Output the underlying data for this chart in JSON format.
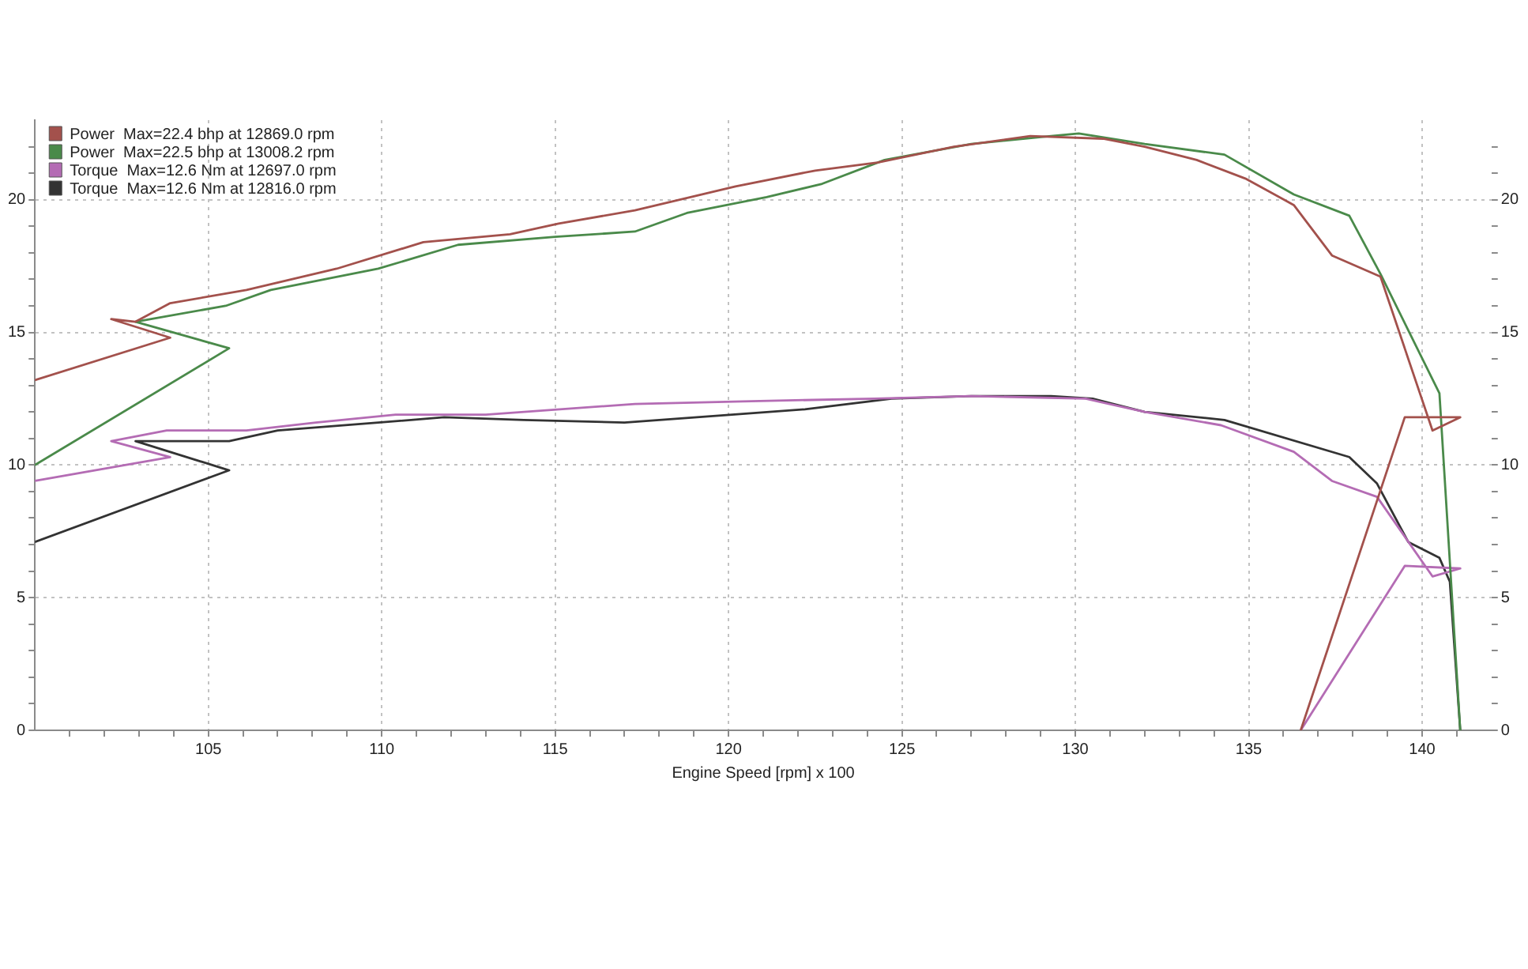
{
  "chart_data": {
    "type": "line",
    "xlabel": "Engine Speed [rpm] x 100",
    "xlim": [
      100,
      142
    ],
    "xticks": [
      {
        "value": 101,
        "label": null
      },
      {
        "value": 102,
        "label": null
      },
      {
        "value": 103,
        "label": null
      },
      {
        "value": 104,
        "label": null
      },
      105,
      {
        "value": 106,
        "label": null
      },
      {
        "value": 107,
        "label": null
      },
      {
        "value": 108,
        "label": null
      },
      {
        "value": 109,
        "label": null
      },
      110,
      {
        "value": 111,
        "label": null
      },
      {
        "value": 112,
        "label": null
      },
      {
        "value": 113,
        "label": null
      },
      {
        "value": 114,
        "label": null
      },
      115,
      {
        "value": 116,
        "label": null
      },
      {
        "value": 117,
        "label": null
      },
      {
        "value": 118,
        "label": null
      },
      {
        "value": 119,
        "label": null
      },
      120,
      {
        "value": 121,
        "label": null
      },
      {
        "value": 122,
        "label": null
      },
      {
        "value": 123,
        "label": null
      },
      {
        "value": 124,
        "label": null
      },
      125,
      {
        "value": 126,
        "label": null
      },
      {
        "value": 127,
        "label": null
      },
      {
        "value": 128,
        "label": null
      },
      {
        "value": 129,
        "label": null
      },
      130,
      {
        "value": 131,
        "label": null
      },
      {
        "value": 132,
        "label": null
      },
      {
        "value": 133,
        "label": null
      },
      {
        "value": 134,
        "label": null
      },
      135,
      {
        "value": 136,
        "label": null
      },
      {
        "value": 137,
        "label": null
      },
      {
        "value": 138,
        "label": null
      },
      {
        "value": 139,
        "label": null
      },
      140,
      {
        "value": 141,
        "label": null
      }
    ],
    "ylim": [
      0,
      23
    ],
    "yticks": [
      0,
      {
        "value": 1,
        "label": null
      },
      {
        "value": 2,
        "label": null
      },
      {
        "value": 3,
        "label": null
      },
      {
        "value": 4,
        "label": null
      },
      5,
      {
        "value": 6,
        "label": null
      },
      {
        "value": 7,
        "label": null
      },
      {
        "value": 8,
        "label": null
      },
      {
        "value": 9,
        "label": null
      },
      10,
      {
        "value": 11,
        "label": null
      },
      {
        "value": 12,
        "label": null
      },
      {
        "value": 13,
        "label": null
      },
      {
        "value": 14,
        "label": null
      },
      15,
      {
        "value": 16,
        "label": null
      },
      {
        "value": 17,
        "label": null
      },
      {
        "value": 18,
        "label": null
      },
      {
        "value": 19,
        "label": null
      },
      20,
      {
        "value": 21,
        "label": null
      },
      {
        "value": 22,
        "label": null
      }
    ],
    "y2lim": [
      0,
      23
    ],
    "y2ticks": [
      0,
      {
        "value": 1,
        "label": null
      },
      {
        "value": 2,
        "label": null
      },
      {
        "value": 3,
        "label": null
      },
      {
        "value": 4,
        "label": null
      },
      5,
      {
        "value": 6,
        "label": null
      },
      {
        "value": 7,
        "label": null
      },
      {
        "value": 8,
        "label": null
      },
      {
        "value": 9,
        "label": null
      },
      10,
      {
        "value": 11,
        "label": null
      },
      {
        "value": 12,
        "label": null
      },
      {
        "value": 13,
        "label": null
      },
      {
        "value": 14,
        "label": null
      },
      15,
      {
        "value": 16,
        "label": null
      },
      {
        "value": 17,
        "label": null
      },
      {
        "value": 18,
        "label": null
      },
      {
        "value": 19,
        "label": null
      },
      20,
      {
        "value": 21,
        "label": null
      },
      {
        "value": 22,
        "label": null
      }
    ],
    "grid": true,
    "legend": "top left",
    "marker": "none",
    "line_style": "solid",
    "series": [
      {
        "name": "Power  Max=22.4 bhp at 12869.0 rpm",
        "color": "#a3514c",
        "x": [
          100,
          103.9,
          102.2,
          102.9,
          103.9,
          106.1,
          108.7,
          111.2,
          113.7,
          115.1,
          117.3,
          120.2,
          122.5,
          124.3,
          126.5,
          128.7,
          130.8,
          132.0,
          133.5,
          134.9,
          136.3,
          137.4,
          138.8,
          140.3,
          141.1,
          139.5,
          136.5
        ],
        "values": [
          13.2,
          14.8,
          15.5,
          15.4,
          16.1,
          16.6,
          17.4,
          18.4,
          18.7,
          19.1,
          19.6,
          20.5,
          21.1,
          21.4,
          22.0,
          22.4,
          22.3,
          22.0,
          21.5,
          20.8,
          19.8,
          17.9,
          17.1,
          11.3,
          11.8,
          11.8,
          0
        ]
      },
      {
        "name": "Power  Max=22.5 bhp at 13008.2 rpm",
        "color": "#4a8a4a",
        "x": [
          100,
          105.6,
          102.9,
          105.5,
          106.8,
          109.9,
          112.2,
          115.0,
          117.3,
          118.8,
          121.1,
          122.7,
          124.5,
          127.0,
          129.3,
          130.1,
          132.0,
          134.3,
          136.3,
          137.9,
          138.8,
          140.5,
          141.1
        ],
        "values": [
          10.0,
          14.4,
          15.4,
          16.0,
          16.6,
          17.4,
          18.3,
          18.6,
          18.8,
          19.5,
          20.1,
          20.6,
          21.5,
          22.1,
          22.4,
          22.5,
          22.1,
          21.7,
          20.2,
          19.4,
          17.2,
          12.7,
          0
        ]
      },
      {
        "name": "Torque  Max=12.6 Nm at 12697.0 rpm",
        "color": "#b46cb4",
        "x": [
          100,
          103.9,
          102.2,
          103.8,
          106.1,
          108.1,
          110.4,
          113.0,
          117.3,
          120.4,
          124.2,
          127.0,
          130.3,
          132.0,
          134.2,
          136.3,
          137.4,
          138.7,
          140.3,
          141.1,
          139.5,
          136.5
        ],
        "values": [
          9.4,
          10.3,
          10.9,
          11.3,
          11.3,
          11.6,
          11.9,
          11.9,
          12.3,
          12.4,
          12.5,
          12.6,
          12.5,
          12.0,
          11.5,
          10.5,
          9.4,
          8.8,
          5.8,
          6.1,
          6.2,
          0
        ]
      },
      {
        "name": "Torque  Max=12.6 Nm at 12816.0 rpm",
        "color": "#333333",
        "x": [
          100,
          105.6,
          102.9,
          105.6,
          107.0,
          109.9,
          111.8,
          114.1,
          117.0,
          120.1,
          122.2,
          124.7,
          127.0,
          129.3,
          130.5,
          132.0,
          134.3,
          137.9,
          138.7,
          139.6,
          140.5,
          140.8,
          141.1
        ],
        "values": [
          7.1,
          9.8,
          10.9,
          10.9,
          11.3,
          11.6,
          11.8,
          11.7,
          11.6,
          11.9,
          12.1,
          12.5,
          12.6,
          12.6,
          12.5,
          12.0,
          11.7,
          10.3,
          9.3,
          7.1,
          6.5,
          5.6,
          0
        ]
      }
    ]
  }
}
